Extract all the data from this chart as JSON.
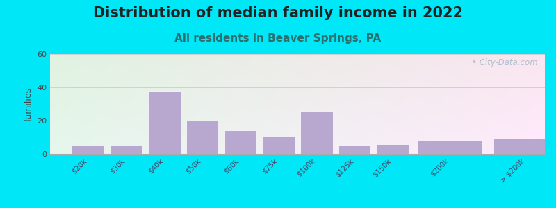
{
  "title": "Distribution of median family income in 2022",
  "subtitle": "All residents in Beaver Springs, PA",
  "categories": [
    "$20k",
    "$30k",
    "$40k",
    "$50k",
    "$60k",
    "$75k",
    "$100k",
    "$125k",
    "$150k",
    "$200k",
    "> $200k"
  ],
  "values": [
    5,
    5,
    38,
    20,
    14,
    11,
    26,
    5,
    6,
    8,
    9
  ],
  "bar_widths": [
    1,
    1,
    1,
    1,
    1,
    1,
    1,
    1,
    1,
    2,
    2
  ],
  "bar_color": "#b8a8d0",
  "bar_edge_color": "#ffffff",
  "ylabel": "families",
  "ylim": [
    0,
    60
  ],
  "yticks": [
    0,
    20,
    40,
    60
  ],
  "background_outer": "#00e8f8",
  "grid_color": "#cccccc",
  "title_fontsize": 15,
  "subtitle_fontsize": 11,
  "title_color": "#222222",
  "subtitle_color": "#2a7070",
  "watermark_text": "• City-Data.com",
  "watermark_color": "#aabbcc",
  "tick_label_color": "#444466",
  "tick_label_fontsize": 7.5
}
